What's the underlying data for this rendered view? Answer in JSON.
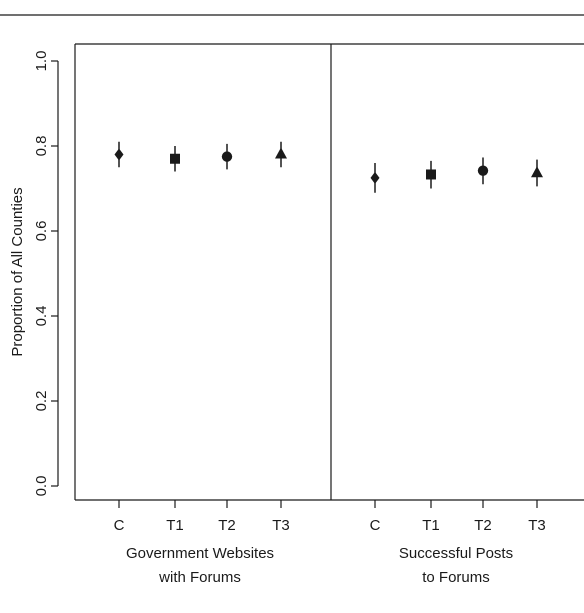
{
  "chart_data": {
    "type": "scatter",
    "ylabel": "Proportion of All Counties",
    "ylim": [
      0.0,
      1.0
    ],
    "yticks": [
      "0.0",
      "0.2",
      "0.4",
      "0.6",
      "0.8",
      "1.0"
    ],
    "grid": false,
    "legend": "none",
    "panels": [
      {
        "title_lines": [
          "Government Websites",
          "with Forums"
        ],
        "categories": [
          "C",
          "T1",
          "T2",
          "T3"
        ],
        "markers": [
          "diamond-icon",
          "square-icon",
          "circle-icon",
          "triangle-icon"
        ],
        "values": [
          0.78,
          0.77,
          0.775,
          0.78
        ],
        "ci_low": [
          0.75,
          0.74,
          0.745,
          0.75
        ],
        "ci_high": [
          0.81,
          0.8,
          0.805,
          0.81
        ]
      },
      {
        "title_lines": [
          "Successful Posts",
          "to Forums"
        ],
        "categories": [
          "C",
          "T1",
          "T2",
          "T3"
        ],
        "markers": [
          "diamond-icon",
          "square-icon",
          "circle-icon",
          "triangle-icon"
        ],
        "values": [
          0.725,
          0.733,
          0.742,
          0.736
        ],
        "ci_low": [
          0.69,
          0.7,
          0.71,
          0.705
        ],
        "ci_high": [
          0.76,
          0.765,
          0.773,
          0.768
        ]
      }
    ]
  }
}
